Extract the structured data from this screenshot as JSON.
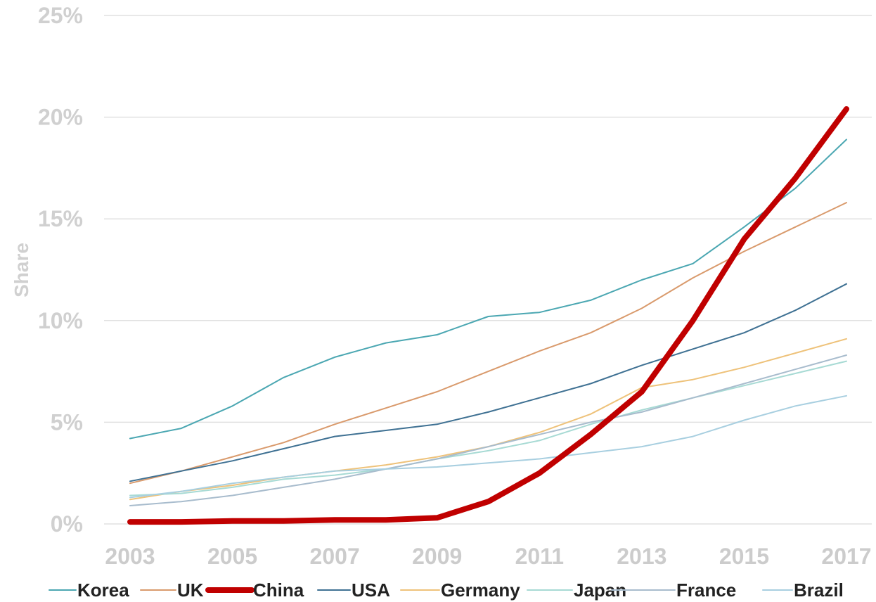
{
  "chart_data": {
    "type": "line",
    "title": "",
    "xlabel": "",
    "ylabel": "Share",
    "x": [
      2003,
      2004,
      2005,
      2006,
      2007,
      2008,
      2009,
      2010,
      2011,
      2012,
      2013,
      2014,
      2015,
      2016,
      2017
    ],
    "xticks": [
      "2003",
      "2005",
      "2007",
      "2009",
      "2011",
      "2013",
      "2015",
      "2017"
    ],
    "yticks": [
      "0%",
      "5%",
      "10%",
      "15%",
      "20%",
      "25%"
    ],
    "ylim": [
      0,
      25
    ],
    "grid": true,
    "legend_position": "bottom",
    "series": [
      {
        "name": "Korea",
        "color": "#4ba7b2",
        "width": 2,
        "values": [
          4.2,
          4.7,
          5.8,
          7.2,
          8.2,
          8.9,
          9.3,
          10.2,
          10.4,
          11.0,
          12.0,
          12.8,
          14.6,
          16.5,
          18.9
        ]
      },
      {
        "name": "UK",
        "color": "#d99a6c",
        "width": 2,
        "values": [
          2.0,
          2.6,
          3.3,
          4.0,
          4.9,
          5.7,
          6.5,
          7.5,
          8.5,
          9.4,
          10.6,
          12.1,
          13.4,
          14.6,
          15.8
        ]
      },
      {
        "name": "China",
        "color": "#c00000",
        "width": 8,
        "values": [
          0.1,
          0.1,
          0.15,
          0.15,
          0.2,
          0.2,
          0.3,
          1.1,
          2.5,
          4.4,
          6.5,
          10.0,
          14.0,
          17.0,
          20.4
        ]
      },
      {
        "name": "USA",
        "color": "#3f7193",
        "width": 2,
        "values": [
          2.1,
          2.6,
          3.1,
          3.7,
          4.3,
          4.6,
          4.9,
          5.5,
          6.2,
          6.9,
          7.8,
          8.6,
          9.4,
          10.5,
          11.8
        ]
      },
      {
        "name": "Germany",
        "color": "#eec27a",
        "width": 2,
        "values": [
          1.2,
          1.6,
          1.9,
          2.3,
          2.6,
          2.9,
          3.3,
          3.8,
          4.5,
          5.4,
          6.7,
          7.1,
          7.7,
          8.4,
          9.1
        ]
      },
      {
        "name": "Japan",
        "color": "#a7dad4",
        "width": 2,
        "values": [
          1.4,
          1.5,
          1.8,
          2.2,
          2.4,
          2.7,
          3.2,
          3.6,
          4.1,
          4.9,
          5.6,
          6.2,
          6.8,
          7.4,
          8.0
        ]
      },
      {
        "name": "France",
        "color": "#a8bccd",
        "width": 2,
        "values": [
          0.9,
          1.1,
          1.4,
          1.8,
          2.2,
          2.7,
          3.2,
          3.8,
          4.4,
          5.0,
          5.5,
          6.2,
          6.9,
          7.6,
          8.3
        ]
      },
      {
        "name": "Brazil",
        "color": "#a8cfe0",
        "width": 2,
        "values": [
          1.3,
          1.6,
          2.0,
          2.3,
          2.6,
          2.7,
          2.8,
          3.0,
          3.2,
          3.5,
          3.8,
          4.3,
          5.1,
          5.8,
          6.3
        ]
      }
    ]
  }
}
